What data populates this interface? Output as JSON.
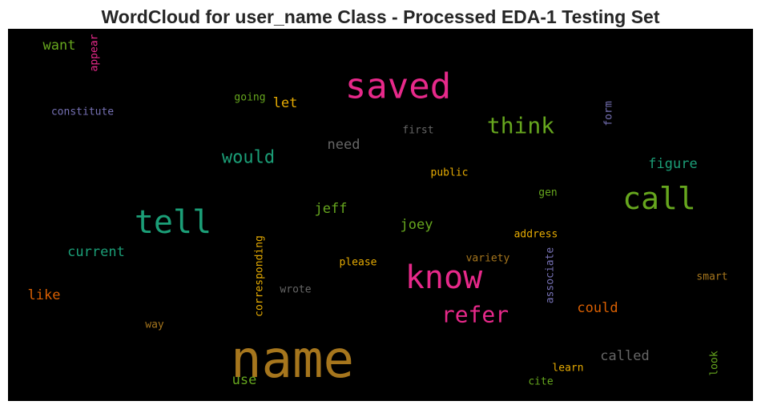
{
  "chart_data": {
    "type": "wordcloud",
    "title": "WordCloud for user_name Class - Processed EDA-1 Testing Set",
    "background": "#000000",
    "words": [
      {
        "text": "name",
        "size": 64,
        "color": "#a6761d",
        "vertical": false
      },
      {
        "text": "saved",
        "size": 44,
        "color": "#e7298a",
        "vertical": false
      },
      {
        "text": "tell",
        "size": 40,
        "color": "#1b9e77",
        "vertical": false
      },
      {
        "text": "know",
        "size": 40,
        "color": "#e7298a",
        "vertical": false
      },
      {
        "text": "call",
        "size": 38,
        "color": "#66a61e",
        "vertical": false
      },
      {
        "text": "think",
        "size": 28,
        "color": "#66a61e",
        "vertical": false
      },
      {
        "text": "refer",
        "size": 28,
        "color": "#e7298a",
        "vertical": false
      },
      {
        "text": "would",
        "size": 22,
        "color": "#1b9e77",
        "vertical": false
      },
      {
        "text": "figure",
        "size": 17,
        "color": "#1b9e77",
        "vertical": false
      },
      {
        "text": "need",
        "size": 17,
        "color": "#666666",
        "vertical": false
      },
      {
        "text": "jeff",
        "size": 17,
        "color": "#66a61e",
        "vertical": false
      },
      {
        "text": "joey",
        "size": 17,
        "color": "#66a61e",
        "vertical": false
      },
      {
        "text": "current",
        "size": 17,
        "color": "#1b9e77",
        "vertical": false
      },
      {
        "text": "like",
        "size": 17,
        "color": "#d95f02",
        "vertical": false
      },
      {
        "text": "could",
        "size": 17,
        "color": "#d95f02",
        "vertical": false
      },
      {
        "text": "called",
        "size": 17,
        "color": "#666666",
        "vertical": false
      },
      {
        "text": "want",
        "size": 17,
        "color": "#66a61e",
        "vertical": false
      },
      {
        "text": "let",
        "size": 17,
        "color": "#e6ab02",
        "vertical": false
      },
      {
        "text": "use",
        "size": 17,
        "color": "#66a61e",
        "vertical": false
      },
      {
        "text": "constitute",
        "size": 13,
        "color": "#7570b3",
        "vertical": false
      },
      {
        "text": "going",
        "size": 13,
        "color": "#66a61e",
        "vertical": false
      },
      {
        "text": "first",
        "size": 13,
        "color": "#666666",
        "vertical": false
      },
      {
        "text": "public",
        "size": 13,
        "color": "#e6ab02",
        "vertical": false
      },
      {
        "text": "gen",
        "size": 13,
        "color": "#66a61e",
        "vertical": false
      },
      {
        "text": "address",
        "size": 13,
        "color": "#e6ab02",
        "vertical": false
      },
      {
        "text": "please",
        "size": 13,
        "color": "#e6ab02",
        "vertical": false
      },
      {
        "text": "variety",
        "size": 13,
        "color": "#a6761d",
        "vertical": false
      },
      {
        "text": "wrote",
        "size": 13,
        "color": "#666666",
        "vertical": false
      },
      {
        "text": "way",
        "size": 13,
        "color": "#a6761d",
        "vertical": false
      },
      {
        "text": "smart",
        "size": 13,
        "color": "#a6761d",
        "vertical": false
      },
      {
        "text": "learn",
        "size": 13,
        "color": "#e6ab02",
        "vertical": false
      },
      {
        "text": "cite",
        "size": 13,
        "color": "#66a61e",
        "vertical": false
      },
      {
        "text": "appear",
        "size": 13,
        "color": "#e7298a",
        "vertical": true
      },
      {
        "text": "form",
        "size": 13,
        "color": "#7570b3",
        "vertical": true
      },
      {
        "text": "associate",
        "size": 13,
        "color": "#7570b3",
        "vertical": true
      },
      {
        "text": "corresponding",
        "size": 13,
        "color": "#e6ab02",
        "vertical": true
      },
      {
        "text": "look",
        "size": 13,
        "color": "#66a61e",
        "vertical": true
      }
    ]
  }
}
